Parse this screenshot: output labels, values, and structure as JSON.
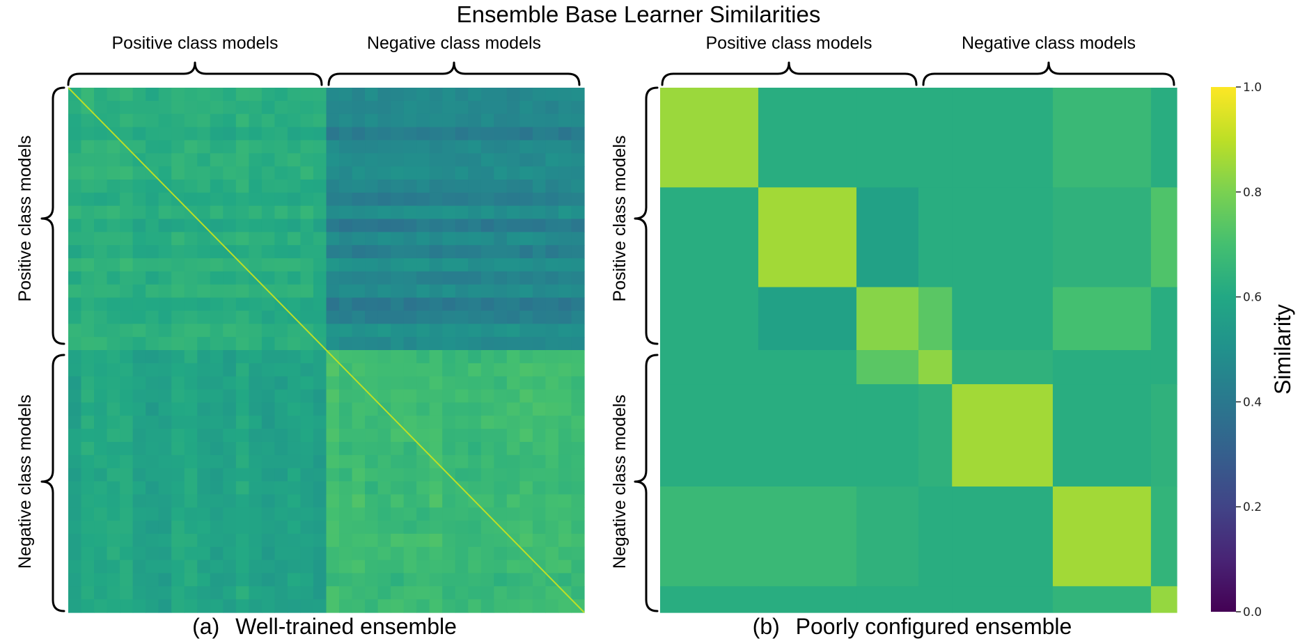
{
  "chart_data": {
    "type": "heatmap",
    "title": "Ensemble Base Learner Similarities",
    "colormap": "viridis",
    "colorbar": {
      "label": "Similarity",
      "range": [
        0.0,
        1.0
      ],
      "ticks": [
        "0.0",
        "0.2",
        "0.4",
        "0.6",
        "0.8",
        "1.0"
      ]
    },
    "panels": [
      {
        "id": "a",
        "caption_letter": "(a)",
        "caption_text": "Well-trained ensemble",
        "top_labels": [
          "Positive class models",
          "Negative class models"
        ],
        "left_labels": [
          "Positive class models",
          "Negative class models"
        ],
        "groups": [
          "positive",
          "negative"
        ],
        "approx_block_means": {
          "positive_positive": 0.62,
          "positive_negative": 0.45,
          "negative_positive": 0.58,
          "negative_negative": 0.68
        },
        "diagonal": 0.9
      },
      {
        "id": "b",
        "caption_letter": "(b)",
        "caption_text": "Poorly configured ensemble",
        "top_labels": [
          "Positive class models",
          "Negative class models"
        ],
        "left_labels": [
          "Positive class models",
          "Negative class models"
        ],
        "cluster_boundaries": [
          0,
          0.19,
          0.38,
          0.5,
          0.565,
          0.76,
          0.95,
          1.0
        ],
        "cluster_similarity": [
          [
            0.85,
            0.62,
            0.62,
            0.62,
            0.62,
            0.67,
            0.62
          ],
          [
            0.62,
            0.86,
            0.57,
            0.62,
            0.62,
            0.64,
            0.72
          ],
          [
            0.62,
            0.57,
            0.82,
            0.74,
            0.62,
            0.7,
            0.62
          ],
          [
            0.62,
            0.62,
            0.74,
            0.83,
            0.64,
            0.62,
            0.62
          ],
          [
            0.62,
            0.62,
            0.62,
            0.64,
            0.86,
            0.62,
            0.64
          ],
          [
            0.67,
            0.67,
            0.64,
            0.62,
            0.62,
            0.86,
            0.65
          ],
          [
            0.62,
            0.62,
            0.62,
            0.62,
            0.62,
            0.65,
            0.84
          ]
        ]
      }
    ]
  }
}
